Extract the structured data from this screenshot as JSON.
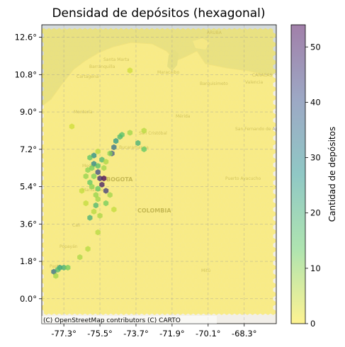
{
  "chart_data": {
    "type": "heatmap",
    "subtype": "hexbin-over-basemap",
    "title": "Densidad de depósitos (hexagonal)",
    "xlabel": "",
    "ylabel": "",
    "xlim": [
      -78.4,
      -66.7
    ],
    "ylim": [
      -1.2,
      13.2
    ],
    "x_ticks": [
      -77.3,
      -75.5,
      -73.7,
      -71.9,
      -70.1,
      -68.3
    ],
    "x_tick_labels": [
      "-77.3°",
      "-75.5°",
      "-73.7°",
      "-71.9°",
      "-70.1°",
      "-68.3°"
    ],
    "y_ticks": [
      0.0,
      1.8,
      3.6,
      5.4,
      7.2,
      9.0,
      10.8,
      12.6
    ],
    "y_tick_labels": [
      "0.0°",
      "1.8°",
      "3.6°",
      "5.4°",
      "7.2°",
      "9.0°",
      "10.8°",
      "12.6°"
    ],
    "grid": true,
    "colorbar": {
      "label": "Cantidad de depósitos",
      "colormap": "viridis_r",
      "alpha": 0.5,
      "min": 0,
      "max": 54,
      "ticks": [
        0,
        10,
        20,
        30,
        40,
        50
      ]
    },
    "background_count": 0,
    "hex_extent": {
      "x": [
        -78.3,
        -66.8
      ],
      "y": [
        -0.7,
        12.9
      ]
    },
    "cells": [
      {
        "x": -75.3,
        "y": 5.8,
        "count": 54
      },
      {
        "x": -75.4,
        "y": 5.5,
        "count": 50
      },
      {
        "x": -75.5,
        "y": 5.8,
        "count": 48
      },
      {
        "x": -75.2,
        "y": 5.2,
        "count": 45
      },
      {
        "x": -75.6,
        "y": 6.1,
        "count": 42
      },
      {
        "x": -74.9,
        "y": 7.0,
        "count": 40
      },
      {
        "x": -74.8,
        "y": 7.3,
        "count": 35
      },
      {
        "x": -77.8,
        "y": 1.3,
        "count": 35
      },
      {
        "x": -75.8,
        "y": 6.5,
        "count": 30
      },
      {
        "x": -75.8,
        "y": 6.9,
        "count": 28
      },
      {
        "x": -74.7,
        "y": 7.6,
        "count": 26
      },
      {
        "x": -77.5,
        "y": 1.5,
        "count": 24
      },
      {
        "x": -77.3,
        "y": 1.5,
        "count": 20
      },
      {
        "x": -77.6,
        "y": 1.4,
        "count": 18
      },
      {
        "x": -75.4,
        "y": 6.7,
        "count": 18
      },
      {
        "x": -76.0,
        "y": 3.9,
        "count": 20
      },
      {
        "x": -75.7,
        "y": 4.5,
        "count": 18
      },
      {
        "x": -74.5,
        "y": 7.8,
        "count": 18
      },
      {
        "x": -73.6,
        "y": 7.5,
        "count": 20
      },
      {
        "x": -75.6,
        "y": 6.4,
        "count": 16
      },
      {
        "x": -76.0,
        "y": 6.8,
        "count": 15
      },
      {
        "x": -75.9,
        "y": 6.3,
        "count": 12
      },
      {
        "x": -76.0,
        "y": 5.6,
        "count": 14
      },
      {
        "x": -75.6,
        "y": 5.3,
        "count": 14
      },
      {
        "x": -75.2,
        "y": 4.6,
        "count": 12
      },
      {
        "x": -74.4,
        "y": 7.9,
        "count": 16
      },
      {
        "x": -73.3,
        "y": 7.2,
        "count": 14
      },
      {
        "x": -77.1,
        "y": 1.5,
        "count": 12
      },
      {
        "x": -75.8,
        "y": 5.9,
        "count": 11
      },
      {
        "x": -75.9,
        "y": 5.4,
        "count": 10
      },
      {
        "x": -76.1,
        "y": 6.2,
        "count": 10
      },
      {
        "x": -76.2,
        "y": 5.9,
        "count": 9
      },
      {
        "x": -75.7,
        "y": 5.0,
        "count": 9
      },
      {
        "x": -75.6,
        "y": 4.8,
        "count": 8
      },
      {
        "x": -75.0,
        "y": 7.0,
        "count": 10
      },
      {
        "x": -74.0,
        "y": 8.0,
        "count": 8
      },
      {
        "x": -75.3,
        "y": 6.3,
        "count": 8
      },
      {
        "x": -75.2,
        "y": 6.6,
        "count": 7
      },
      {
        "x": -75.0,
        "y": 5.0,
        "count": 8
      },
      {
        "x": -75.8,
        "y": 4.2,
        "count": 6
      },
      {
        "x": -75.5,
        "y": 4.0,
        "count": 7
      },
      {
        "x": -75.6,
        "y": 3.2,
        "count": 6
      },
      {
        "x": -76.1,
        "y": 2.4,
        "count": 6
      },
      {
        "x": -76.5,
        "y": 2.0,
        "count": 7
      },
      {
        "x": -76.2,
        "y": 4.6,
        "count": 5
      },
      {
        "x": -76.4,
        "y": 5.2,
        "count": 5
      },
      {
        "x": -77.7,
        "y": 1.1,
        "count": 8
      },
      {
        "x": -73.3,
        "y": 8.1,
        "count": 6
      },
      {
        "x": -74.0,
        "y": 11.0,
        "count": 4
      },
      {
        "x": -76.9,
        "y": 8.3,
        "count": 4
      },
      {
        "x": -75.6,
        "y": 7.1,
        "count": 6
      },
      {
        "x": -74.8,
        "y": 4.3,
        "count": 5
      }
    ]
  },
  "basemap": {
    "attribution": "(C) OpenStreetMap contributors (C) CARTO",
    "labels": {
      "aruba": "ARUBA",
      "caracas": "CARACAS",
      "colombia": "COLOMBIA",
      "bogota": "BOGOTA",
      "santa_marta": "Santa Marta",
      "barranquilla": "Barranquilla",
      "cartagena": "Cartagena",
      "maracaibo": "Maracaibo",
      "barquisimeto": "Barquisimeto",
      "valencia": "Valencia",
      "monteria": "Montería",
      "merida": "Mérida",
      "san_cristobal": "San Cristóbal",
      "bucaramanga": "Bucaramanga",
      "san_fernando": "San Fernando de Apure",
      "medellin": "Medellín",
      "manizales": "Manizales",
      "puerto_ayacucho": "Puerto Ayacucho",
      "cali": "Cali",
      "popayan": "Popayán",
      "pasto": "Pasto",
      "mitu": "Mitú"
    }
  }
}
